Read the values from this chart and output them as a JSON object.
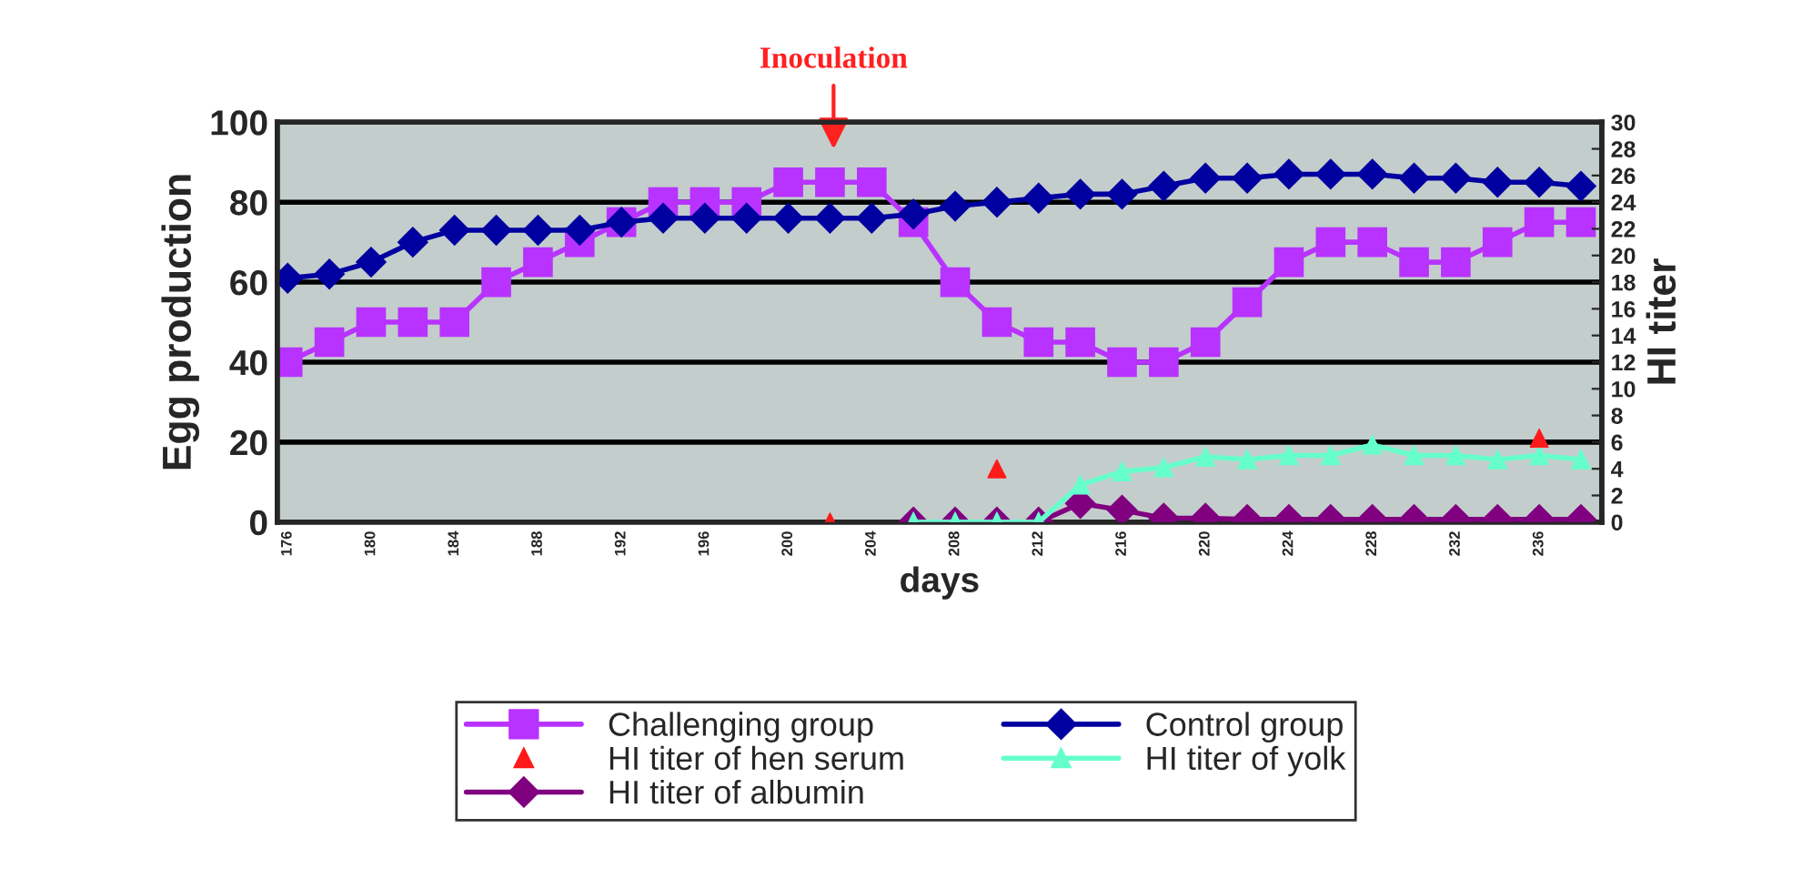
{
  "chart_data": {
    "type": "line",
    "xlabel": "days",
    "ylabel": "Egg production",
    "y2label": "HI titer",
    "x": [
      176,
      178,
      180,
      182,
      184,
      186,
      188,
      190,
      192,
      194,
      196,
      198,
      200,
      202,
      204,
      206,
      208,
      210,
      212,
      214,
      216,
      218,
      220,
      222,
      224,
      226,
      228,
      230,
      232,
      234,
      236,
      238
    ],
    "xlim": [
      175.5,
      239
    ],
    "xticks": [
      176,
      180,
      184,
      188,
      192,
      196,
      200,
      204,
      208,
      212,
      216,
      220,
      224,
      228,
      232,
      236
    ],
    "ylim": [
      0,
      100
    ],
    "yticks": [
      0,
      20,
      40,
      60,
      80,
      100
    ],
    "y2lim": [
      0,
      30
    ],
    "y2ticks": [
      0,
      2,
      4,
      6,
      8,
      10,
      12,
      14,
      16,
      18,
      20,
      22,
      24,
      26,
      28,
      30
    ],
    "grid": "y",
    "legend": "bottom",
    "annotations": [
      "Inoculation"
    ],
    "series": [
      {
        "name": "Challenging group",
        "color": "#b833ff",
        "marker": "square",
        "values": [
          40,
          45,
          50,
          50,
          50,
          60,
          65,
          70,
          75,
          80,
          80,
          80,
          85,
          85,
          85,
          75,
          60,
          50,
          45,
          45,
          40,
          40,
          45,
          55,
          65,
          70,
          70,
          65,
          65,
          70,
          75,
          75
        ]
      },
      {
        "name": "Control group",
        "color": "#0000a0",
        "marker": "diamond",
        "values": [
          61,
          62,
          65,
          70,
          73,
          73,
          73,
          73,
          75,
          76,
          76,
          76,
          76,
          76,
          76,
          77,
          79,
          80,
          81,
          82,
          82,
          84,
          86,
          86,
          87,
          87,
          87,
          86,
          86,
          85,
          85,
          84
        ]
      },
      {
        "name": "HI titer of hen serum",
        "type": "scatter",
        "axis": "y2",
        "color": "#ff1a1a",
        "marker": "triangle",
        "x": [
          202,
          210,
          236
        ],
        "values": [
          0,
          4,
          6.3
        ]
      },
      {
        "name": "HI titer of yolk",
        "axis": "y2",
        "color": "#66ffcc",
        "marker": "triangle",
        "x": [
          206,
          208,
          210,
          212,
          214,
          216,
          218,
          220,
          222,
          224,
          226,
          228,
          230,
          232,
          234,
          236,
          238
        ],
        "values": [
          0,
          0,
          0,
          0,
          2.8,
          3.8,
          4.1,
          4.9,
          4.7,
          5,
          5,
          5.8,
          5,
          5,
          4.7,
          5,
          4.7
        ]
      },
      {
        "name": "HI titer of albumin",
        "axis": "y2",
        "color": "#800080",
        "marker": "diamond",
        "x": [
          206,
          208,
          210,
          212,
          214,
          216,
          218,
          220,
          222,
          224,
          226,
          228,
          230,
          232,
          234,
          236,
          238
        ],
        "values": [
          0,
          0,
          0,
          0,
          1.4,
          0.9,
          0.3,
          0.3,
          0.2,
          0.2,
          0.2,
          0.2,
          0.2,
          0.2,
          0.2,
          0.2,
          0.2
        ]
      }
    ]
  }
}
